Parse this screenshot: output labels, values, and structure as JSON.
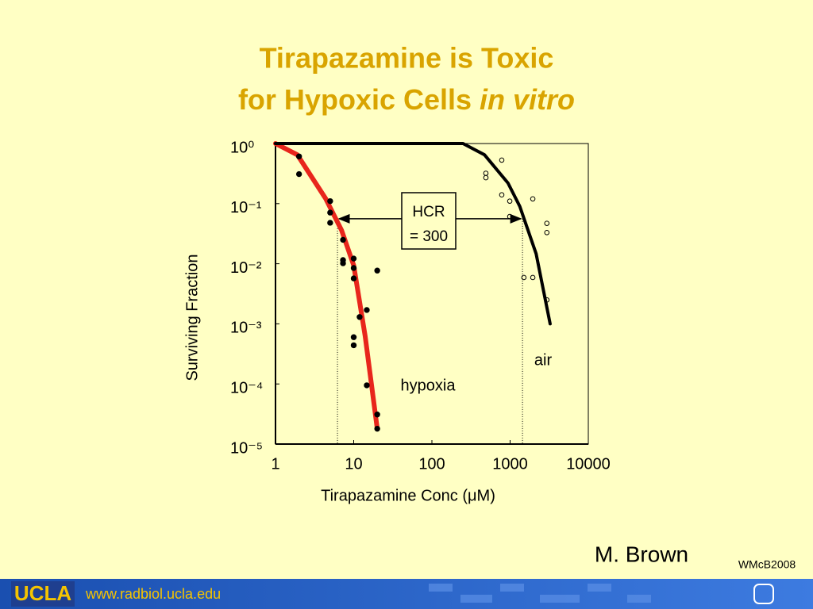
{
  "slide": {
    "title_line1": "Tirapazamine is Toxic",
    "title_line2": "for Hypoxic Cells ",
    "title_italic": "in vitro",
    "author": "M. Brown",
    "credit": "WMcB2008",
    "logo": "UCLA",
    "url": "www.radbiol.ucla.edu"
  },
  "chart_data": {
    "type": "scatter",
    "xscale": "log",
    "yscale": "log",
    "x_label": "Tirapazamine Conc (μM)",
    "y_label": "Surviving  Fraction",
    "xlim": [
      1,
      10000
    ],
    "xticks": [
      1,
      10,
      100,
      1000,
      10000
    ],
    "ylim": [
      1e-05,
      1
    ],
    "yticks": [
      {
        "value": 1,
        "label": "10⁰"
      },
      {
        "value": 0.1,
        "label": "10⁻¹"
      },
      {
        "value": 0.01,
        "label": "10⁻²"
      },
      {
        "value": 0.001,
        "label": "10⁻³"
      },
      {
        "value": 0.0001,
        "label": "10⁻⁴"
      },
      {
        "value": 1e-05,
        "label": "10⁻⁵"
      }
    ],
    "series": [
      {
        "name": "hypoxia",
        "color": "#e8261c",
        "marker": "filled",
        "x": [
          2,
          2,
          5,
          5,
          5,
          7.3,
          7.3,
          7.3,
          10,
          10,
          10,
          20,
          11.9,
          14.7,
          10,
          10,
          14.7,
          20,
          20
        ],
        "y": [
          0.61,
          0.31,
          0.11,
          0.071,
          0.048,
          0.025,
          0.0115,
          0.0102,
          0.0122,
          0.0085,
          0.0057,
          0.0077,
          0.0013,
          0.0017,
          0.0006,
          0.00044,
          9.5e-05,
          3.1e-05,
          1.8e-05
        ],
        "fit_x": [
          1,
          1.9,
          4.4,
          7,
          10,
          14,
          20
        ],
        "fit_y": [
          1,
          0.65,
          0.12,
          0.036,
          0.0094,
          0.00063,
          1.8e-05
        ]
      },
      {
        "name": "air",
        "color": "#000000",
        "marker": "open",
        "x": [
          782,
          490,
          490,
          782,
          990,
          1950,
          990,
          2950,
          2950,
          1500,
          1950,
          2950
        ],
        "y": [
          0.53,
          0.32,
          0.27,
          0.14,
          0.11,
          0.12,
          0.061,
          0.047,
          0.033,
          0.0059,
          0.0059,
          0.0025
        ],
        "fit_x": [
          1,
          250,
          470,
          940,
          1330,
          2150,
          3250
        ],
        "fit_y": [
          1,
          1,
          0.65,
          0.22,
          0.09,
          0.0147,
          0.001
        ]
      }
    ],
    "hcr": {
      "label": [
        "HCR",
        "= 300"
      ],
      "x": [
        6.2,
        1440
      ],
      "y": 0.056
    }
  }
}
